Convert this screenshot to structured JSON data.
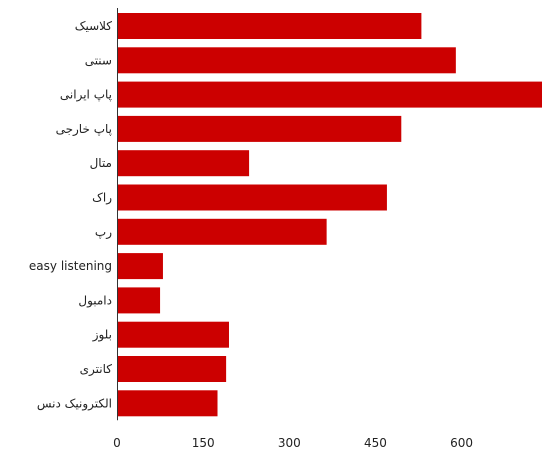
{
  "colors": {
    "bar": "#cc0000",
    "axis": "#333333",
    "text": "#222222"
  },
  "chart_data": {
    "type": "bar",
    "orientation": "horizontal",
    "categories": [
      "کلاسیک",
      "سنتی",
      "پاپ ایرانی",
      "پاپ خارجی",
      "متال",
      "راک",
      "رپ",
      "easy listening",
      "دامبول",
      "بلوز",
      "کانتری",
      "الکترونیک دنس"
    ],
    "values": [
      530,
      590,
      740,
      495,
      230,
      470,
      365,
      80,
      75,
      195,
      190,
      175
    ],
    "xlim": [
      0,
      740
    ],
    "xticks": [
      0,
      150,
      300,
      450,
      600
    ],
    "xtick_labels": [
      "0",
      "150",
      "300",
      "450",
      "600"
    ],
    "grid": false,
    "legend": "none",
    "title": "",
    "xlabel": "",
    "ylabel": ""
  }
}
